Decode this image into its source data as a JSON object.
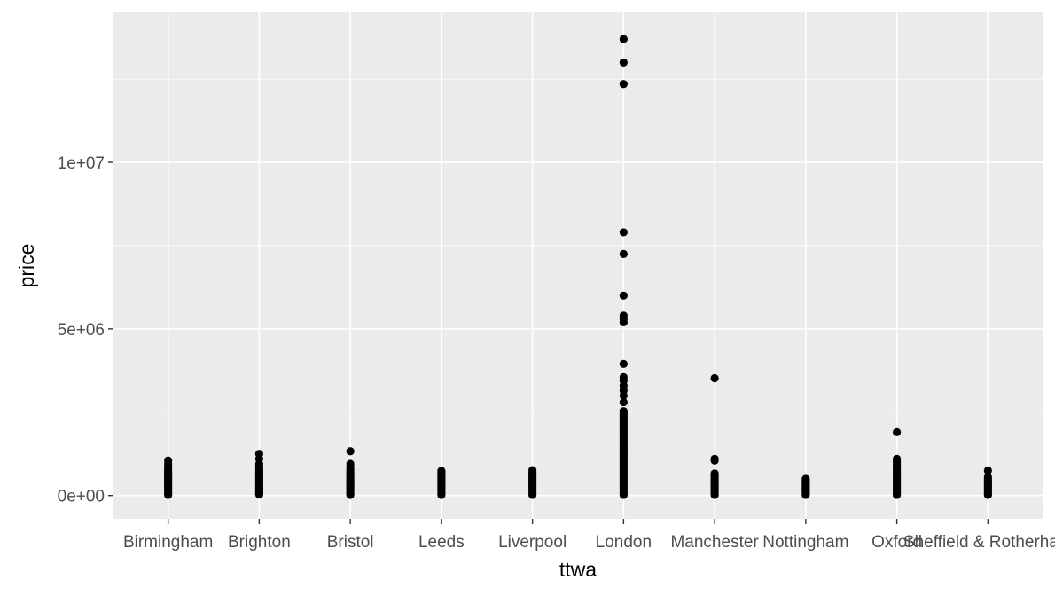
{
  "chart_data": {
    "type": "scatter",
    "xlabel": "ttwa",
    "ylabel": "price",
    "x_type": "categorical",
    "categories": [
      "Birmingham",
      "Brighton",
      "Bristol",
      "Leeds",
      "Liverpool",
      "London",
      "Manchester",
      "Nottingham",
      "Oxford",
      "Sheffield & Rotherham"
    ],
    "y_ticks": [
      {
        "value": 0,
        "label": "0e+00"
      },
      {
        "value": 5000000,
        "label": "5e+06"
      },
      {
        "value": 10000000,
        "label": "1e+07"
      }
    ],
    "ylim": [
      -700000,
      14500000
    ],
    "grid": true,
    "legend": "none",
    "colors": {
      "panel": "#ebebeb",
      "grid": "#ffffff",
      "point": "#000000"
    },
    "points_by_category": {
      "Birmingham": [
        20000,
        60000,
        100000,
        140000,
        180000,
        220000,
        260000,
        300000,
        340000,
        380000,
        420000,
        460000,
        500000,
        540000,
        580000,
        620000,
        660000,
        700000,
        750000,
        800000,
        870000,
        950000,
        1050000
      ],
      "Brighton": [
        30000,
        70000,
        110000,
        150000,
        190000,
        230000,
        270000,
        310000,
        350000,
        390000,
        430000,
        470000,
        510000,
        550000,
        600000,
        650000,
        700000,
        750000,
        800000,
        870000,
        950000,
        1100000,
        1250000
      ],
      "Bristol": [
        20000,
        60000,
        100000,
        140000,
        180000,
        220000,
        260000,
        300000,
        340000,
        380000,
        420000,
        460000,
        500000,
        550000,
        600000,
        650000,
        700000,
        760000,
        850000,
        950000,
        1330000
      ],
      "Leeds": [
        20000,
        60000,
        100000,
        140000,
        180000,
        220000,
        260000,
        300000,
        340000,
        380000,
        420000,
        460000,
        500000,
        540000,
        580000,
        620000,
        660000,
        700000,
        740000
      ],
      "Liverpool": [
        20000,
        60000,
        100000,
        140000,
        180000,
        220000,
        260000,
        300000,
        340000,
        380000,
        420000,
        460000,
        500000,
        540000,
        580000,
        620000,
        660000,
        700000,
        760000
      ],
      "London": [
        20000,
        70000,
        120000,
        170000,
        220000,
        270000,
        320000,
        370000,
        420000,
        470000,
        520000,
        570000,
        620000,
        670000,
        720000,
        770000,
        820000,
        870000,
        920000,
        970000,
        1020000,
        1070000,
        1120000,
        1170000,
        1220000,
        1270000,
        1320000,
        1370000,
        1420000,
        1470000,
        1520000,
        1570000,
        1620000,
        1670000,
        1720000,
        1770000,
        1820000,
        1870000,
        1920000,
        1970000,
        2020000,
        2070000,
        2120000,
        2170000,
        2220000,
        2270000,
        2320000,
        2370000,
        2420000,
        2470000,
        2530000,
        2800000,
        3000000,
        3150000,
        3300000,
        3450000,
        3550000,
        3950000,
        5200000,
        5300000,
        5400000,
        6000000,
        7250000,
        7900000,
        12350000,
        13000000,
        13700000
      ],
      "Manchester": [
        20000,
        60000,
        100000,
        140000,
        180000,
        220000,
        260000,
        300000,
        340000,
        380000,
        420000,
        460000,
        500000,
        540000,
        580000,
        620000,
        660000,
        1050000,
        1100000,
        3520000
      ],
      "Nottingham": [
        20000,
        60000,
        100000,
        140000,
        180000,
        220000,
        260000,
        300000,
        340000,
        380000,
        420000,
        460000,
        500000
      ],
      "Oxford": [
        20000,
        60000,
        100000,
        140000,
        180000,
        220000,
        260000,
        300000,
        340000,
        380000,
        420000,
        460000,
        500000,
        540000,
        580000,
        620000,
        660000,
        700000,
        750000,
        800000,
        850000,
        900000,
        950000,
        1000000,
        1050000,
        1100000,
        1900000
      ],
      "Sheffield & Rotherham": [
        20000,
        60000,
        100000,
        140000,
        180000,
        220000,
        260000,
        300000,
        340000,
        380000,
        420000,
        460000,
        500000,
        550000,
        750000
      ]
    }
  }
}
